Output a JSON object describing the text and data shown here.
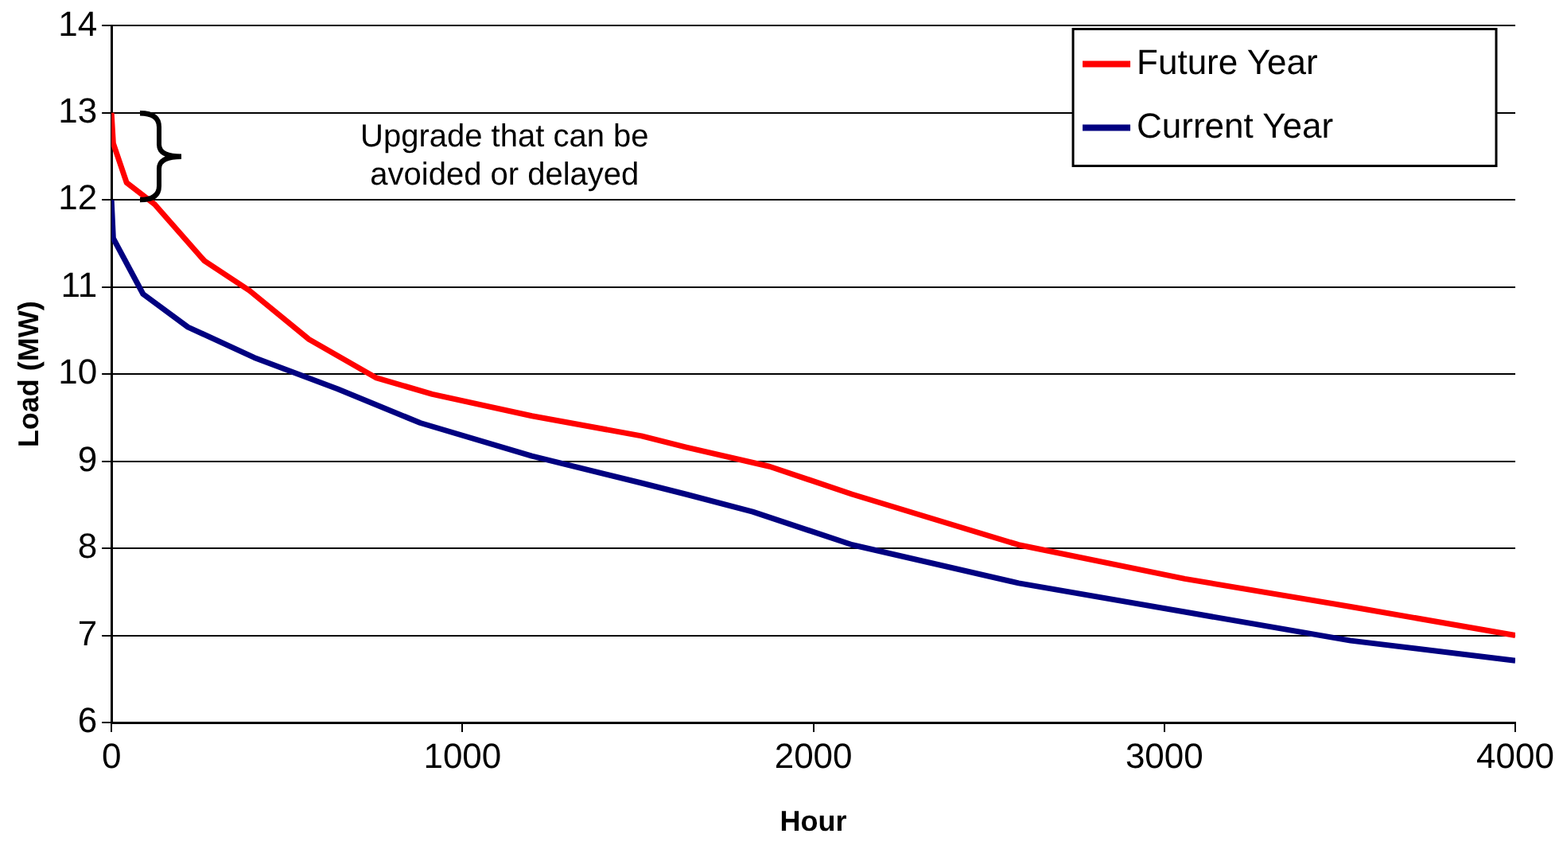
{
  "chart_data": {
    "type": "line",
    "xlabel": "Hour",
    "ylabel": "Load (MW)",
    "annotations": [
      "Upgrade that can be avoided or delayed"
    ],
    "xlim": [
      0,
      4000
    ],
    "xticks": [
      0,
      1000,
      2000,
      3000,
      4000
    ],
    "ylim": [
      6,
      14
    ],
    "yticks": [
      6,
      7,
      8,
      9,
      10,
      11,
      12,
      13,
      14
    ],
    "grid": "y",
    "legend": "top right",
    "marker": "none",
    "line_style": "solid",
    "series": [
      {
        "name": "Future Year",
        "color": "#ff0000",
        "x": [
          0,
          5,
          43,
          123,
          265,
          393,
          563,
          753,
          914,
          1198,
          1510,
          1638,
          1875,
          2111,
          2585,
          3058,
          3531,
          4000
        ],
        "values": [
          13.0,
          12.65,
          12.2,
          11.95,
          11.3,
          10.96,
          10.4,
          9.96,
          9.77,
          9.52,
          9.29,
          9.16,
          8.94,
          8.62,
          8.04,
          7.65,
          7.33,
          7.0
        ]
      },
      {
        "name": "Current Year",
        "color": "#000080",
        "x": [
          0,
          5,
          90,
          218,
          407,
          644,
          880,
          1198,
          1510,
          1638,
          1827,
          2111,
          2585,
          3058,
          3531,
          4000
        ],
        "values": [
          12.0,
          11.56,
          10.92,
          10.54,
          10.19,
          9.83,
          9.44,
          9.06,
          8.75,
          8.62,
          8.42,
          8.04,
          7.6,
          7.27,
          6.94,
          6.71
        ]
      }
    ]
  }
}
